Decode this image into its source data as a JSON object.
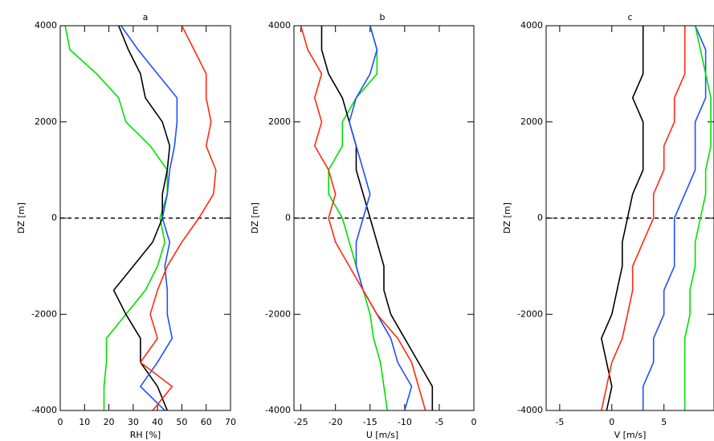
{
  "chart_data": [
    {
      "type": "line",
      "title": "a",
      "x_label": "RH [%]",
      "y_label": "DZ [m]",
      "y": [
        -4000,
        -3500,
        -3000,
        -2500,
        -2000,
        -1500,
        -1000,
        -500,
        0,
        500,
        1000,
        1500,
        2000,
        2500,
        3000,
        3500,
        4000
      ],
      "xlim": [
        0,
        70
      ],
      "xticks": [
        0,
        10,
        20,
        30,
        40,
        50,
        60,
        70
      ],
      "ylim": [
        -4000,
        4000
      ],
      "yticks": [
        -4000,
        -2000,
        0,
        2000,
        4000
      ],
      "hline": 0,
      "series": [
        {
          "color": "#00e000",
          "values": [
            18,
            18,
            19,
            19,
            27,
            35,
            40,
            43,
            41,
            44,
            44,
            37,
            27,
            24,
            15,
            4,
            2
          ]
        },
        {
          "color": "#000000",
          "values": [
            44,
            40,
            33,
            33,
            27,
            22,
            30,
            38,
            42,
            42,
            44,
            45,
            42,
            35,
            33,
            28,
            24
          ]
        },
        {
          "color": "#1e50ff",
          "values": [
            43,
            33,
            40,
            46,
            44,
            44,
            43,
            45,
            42,
            44,
            45,
            47,
            48,
            48,
            40,
            32,
            25
          ]
        },
        {
          "color": "#ff2a10",
          "values": [
            38,
            46,
            33,
            40,
            37,
            40,
            44,
            50,
            57,
            63,
            64,
            60,
            62,
            60,
            60,
            55,
            50
          ]
        }
      ]
    },
    {
      "type": "line",
      "title": "b",
      "x_label": "U [m/s]",
      "y_label": "DZ [m]",
      "y": [
        -4000,
        -3500,
        -3000,
        -2500,
        -2000,
        -1500,
        -1000,
        -500,
        0,
        500,
        1000,
        1500,
        2000,
        2500,
        3000,
        3500,
        4000
      ],
      "xlim": [
        -26,
        0
      ],
      "xticks": [
        -25,
        -20,
        -15,
        -10,
        -5,
        0
      ],
      "ylim": [
        -4000,
        4000
      ],
      "yticks": [
        -4000,
        -2000,
        0,
        2000,
        4000
      ],
      "hline": 0,
      "series": [
        {
          "color": "#00e000",
          "values": [
            -12.5,
            -13,
            -13.5,
            -14.5,
            -15,
            -16,
            -17,
            -18,
            -19,
            -21,
            -21,
            -19,
            -19,
            -17,
            -14,
            -14,
            -15
          ]
        },
        {
          "color": "#000000",
          "values": [
            -6,
            -6,
            -8,
            -10,
            -12,
            -13,
            -13,
            -14,
            -15,
            -16,
            -17,
            -17,
            -18,
            -19,
            -21,
            -22,
            -22
          ]
        },
        {
          "color": "#1e50ff",
          "values": [
            -10,
            -9,
            -11,
            -12,
            -14,
            -16,
            -17,
            -17,
            -16,
            -15,
            -16,
            -17,
            -18,
            -17,
            -15,
            -14,
            -15
          ]
        },
        {
          "color": "#ff2a10",
          "values": [
            -7,
            -8,
            -9,
            -11,
            -14,
            -16,
            -18,
            -20,
            -21,
            -20,
            -21,
            -23,
            -22,
            -23,
            -22,
            -24,
            -25
          ]
        }
      ]
    },
    {
      "type": "line",
      "title": "c",
      "x_label": "V [m/s]",
      "y_label": "DZ [m]",
      "y": [
        -4000,
        -3500,
        -3000,
        -2500,
        -2000,
        -1500,
        -1000,
        -500,
        0,
        500,
        1000,
        1500,
        2000,
        2500,
        3000,
        3500,
        4000
      ],
      "xlim": [
        -6.3,
        9.8
      ],
      "xticks": [
        -5,
        0,
        5
      ],
      "ylim": [
        -4000,
        4000
      ],
      "yticks": [
        -4000,
        -2000,
        0,
        2000,
        4000
      ],
      "hline": 0,
      "series": [
        {
          "color": "#000000",
          "values": [
            -0.5,
            0,
            -0.5,
            -1,
            0,
            0.5,
            1,
            1,
            1.5,
            2,
            3,
            3,
            3,
            2,
            3,
            3,
            3
          ]
        },
        {
          "color": "#ff2a10",
          "values": [
            -1,
            -0.5,
            0,
            1,
            1.5,
            2,
            2,
            3,
            4,
            4,
            5,
            5,
            6,
            6,
            7,
            7,
            7
          ]
        },
        {
          "color": "#1e50ff",
          "values": [
            3,
            3,
            4,
            4,
            5,
            5,
            6,
            6,
            6,
            7,
            8,
            8,
            8,
            9,
            9,
            9,
            8
          ]
        },
        {
          "color": "#00e000",
          "values": [
            7,
            7,
            7,
            7,
            7.5,
            7.5,
            8,
            8,
            8.5,
            9,
            9,
            9.5,
            9.5,
            9.5,
            9,
            8.5,
            8
          ]
        }
      ]
    }
  ]
}
